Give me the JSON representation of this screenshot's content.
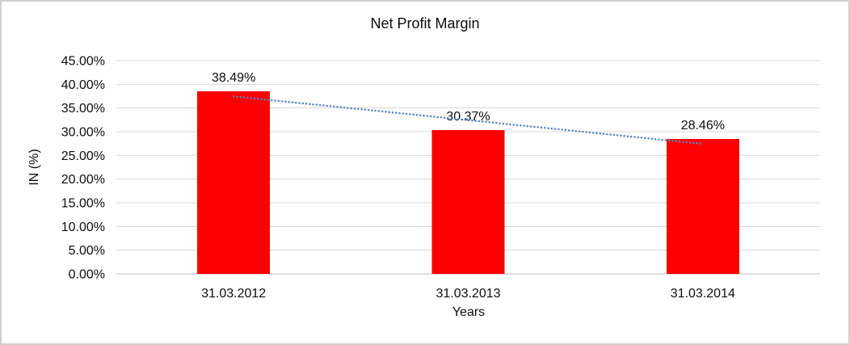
{
  "chart_data": {
    "type": "bar",
    "title": "Net Profit Margin",
    "xlabel": "Years",
    "ylabel": "IN (%)",
    "categories": [
      "31.03.2012",
      "31.03.2013",
      "31.03.2014"
    ],
    "values": [
      38.49,
      30.37,
      28.46
    ],
    "data_labels": [
      "38.49%",
      "30.37%",
      "28.46%"
    ],
    "ylim": [
      0,
      45
    ],
    "ytick_step": 5,
    "ytick_labels": [
      "0.00%",
      "5.00%",
      "10.00%",
      "15.00%",
      "20.00%",
      "25.00%",
      "30.00%",
      "35.00%",
      "40.00%",
      "45.00%"
    ],
    "grid": true,
    "legend": false,
    "trendline": {
      "type": "linear",
      "style": "dotted"
    }
  },
  "colors": {
    "bar": "#ff0000",
    "trendline": "#4f86c6",
    "gridline": "#d9d9d9",
    "axis_line": "#bfbfbf",
    "text": "#0d0d0d",
    "frame_border": "#cfcfcf",
    "background": "#ffffff"
  }
}
